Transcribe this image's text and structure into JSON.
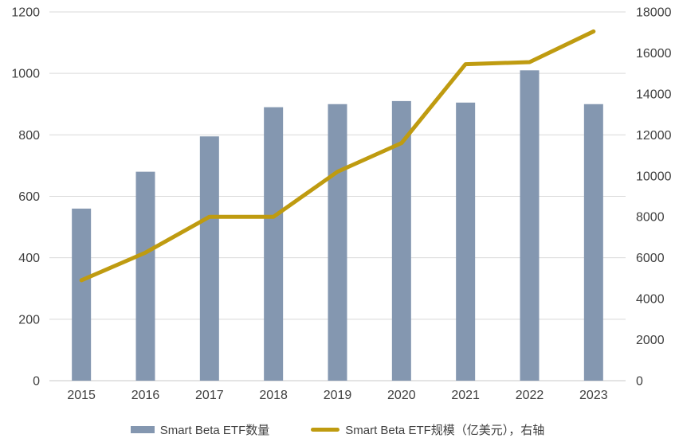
{
  "chart_data": {
    "type": "combo",
    "title": "",
    "categories": [
      "2015",
      "2016",
      "2017",
      "2018",
      "2019",
      "2020",
      "2021",
      "2022",
      "2023"
    ],
    "series": [
      {
        "name": "Smart Beta ETF数量",
        "type": "bar",
        "axis": "left",
        "color": "#8497B0",
        "values": [
          560,
          680,
          795,
          890,
          900,
          910,
          905,
          1010,
          900
        ]
      },
      {
        "name": "Smart Beta ETF规模（亿美元），右轴",
        "type": "line",
        "axis": "right",
        "color": "#BF9B10",
        "values": [
          4900,
          6250,
          8000,
          8000,
          10200,
          11600,
          15450,
          15550,
          17050
        ]
      }
    ],
    "left_axis": {
      "min": 0,
      "max": 1200,
      "step": 200,
      "ticks": [
        0,
        200,
        400,
        600,
        800,
        1000,
        1200
      ]
    },
    "right_axis": {
      "min": 0,
      "max": 18000,
      "step": 2000,
      "ticks": [
        0,
        2000,
        4000,
        6000,
        8000,
        10000,
        12000,
        14000,
        16000,
        18000
      ]
    },
    "grid": "horizontal-left-ticks",
    "legend_position": "bottom",
    "colors": {
      "background": "#FFFFFF",
      "gridline": "#D9D9D9",
      "axis_line": "#C8C8C8",
      "axis_text": "#404040"
    }
  },
  "legend": {
    "items": [
      {
        "label": "Smart Beta ETF数量"
      },
      {
        "label": "Smart Beta ETF规模（亿美元），右轴"
      }
    ]
  }
}
